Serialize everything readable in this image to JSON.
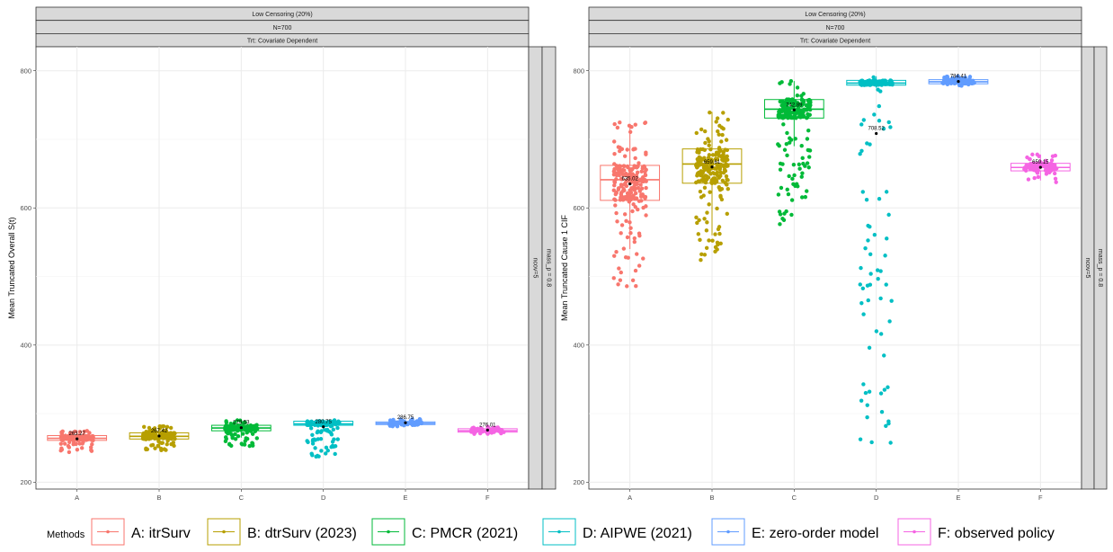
{
  "chart_data": [
    {
      "type": "box",
      "panel": "left",
      "strips_top": [
        "Low Censoring (20%)",
        "N=700",
        "Trt: Covariate Dependent"
      ],
      "strips_right": [
        "ncov=5",
        "mass_p = 0.8"
      ],
      "ylabel": "Mean Truncated Overall S(t)",
      "xlabel": "",
      "ylim": [
        190,
        835
      ],
      "yticks": [
        200,
        400,
        600,
        800
      ],
      "categories": [
        "A",
        "B",
        "C",
        "D",
        "E",
        "F"
      ],
      "grid": true,
      "boxes": [
        {
          "cat": "A",
          "q1": 261,
          "median": 264,
          "q3": 268,
          "whisker_low": 255,
          "whisker_high": 276,
          "mean": 263.27,
          "mean_label": "263.27",
          "points_min": 243,
          "points_max": 276,
          "n_points": 140
        },
        {
          "cat": "B",
          "q1": 263,
          "median": 267,
          "q3": 272,
          "whisker_low": 252,
          "whisker_high": 283,
          "mean": 267.42,
          "mean_label": "267.42",
          "points_min": 246,
          "points_max": 283,
          "n_points": 140
        },
        {
          "cat": "C",
          "q1": 275,
          "median": 279,
          "q3": 283,
          "whisker_low": 265,
          "whisker_high": 291,
          "mean": 279.53,
          "mean_label": "279.53",
          "points_min": 252,
          "points_max": 291,
          "n_points": 140
        },
        {
          "cat": "D",
          "q1": 283,
          "median": 285,
          "q3": 289,
          "whisker_low": 276,
          "whisker_high": 292,
          "mean": 280.75,
          "mean_label": "280.75",
          "points_min": 237,
          "points_max": 292,
          "n_points": 140
        },
        {
          "cat": "E",
          "q1": 284,
          "median": 286,
          "q3": 288,
          "whisker_low": 281,
          "whisker_high": 292,
          "mean": 286.75,
          "mean_label": "286.75",
          "points_min": 281,
          "points_max": 292,
          "n_points": 80
        },
        {
          "cat": "F",
          "q1": 273,
          "median": 275,
          "q3": 278,
          "whisker_low": 270,
          "whisker_high": 281,
          "mean": 276.01,
          "mean_label": "276.01",
          "points_min": 270,
          "points_max": 281,
          "n_points": 80
        }
      ]
    },
    {
      "type": "box",
      "panel": "right",
      "strips_top": [
        "Low Censoring (20%)",
        "N=700",
        "Trt: Covariate Dependent"
      ],
      "strips_right": [
        "ncov=5",
        "mass_p = 0.8"
      ],
      "ylabel": "Mean Truncated Cause 1 CIF",
      "xlabel": "",
      "ylim": [
        190,
        835
      ],
      "yticks": [
        200,
        400,
        600,
        800
      ],
      "categories": [
        "A",
        "B",
        "C",
        "D",
        "E",
        "F"
      ],
      "grid": true,
      "boxes": [
        {
          "cat": "A",
          "q1": 611,
          "median": 641,
          "q3": 662,
          "whisker_low": 540,
          "whisker_high": 720,
          "mean": 635.02,
          "mean_label": "635.02",
          "points_min": 485,
          "points_max": 725,
          "n_points": 220
        },
        {
          "cat": "B",
          "q1": 636,
          "median": 664,
          "q3": 686,
          "whisker_low": 560,
          "whisker_high": 740,
          "mean": 659.61,
          "mean_label": "659.61",
          "points_min": 523,
          "points_max": 740,
          "n_points": 220
        },
        {
          "cat": "C",
          "q1": 731,
          "median": 744,
          "q3": 758,
          "whisker_low": 690,
          "whisker_high": 785,
          "mean": 742.89,
          "mean_label": "742.89",
          "points_min": 570,
          "points_max": 785,
          "n_points": 200
        },
        {
          "cat": "D",
          "q1": 779,
          "median": 782,
          "q3": 786,
          "whisker_low": 775,
          "whisker_high": 792,
          "mean": 708.52,
          "mean_label": "708.52",
          "points_min": 255,
          "points_max": 792,
          "n_points": 170
        },
        {
          "cat": "E",
          "q1": 781,
          "median": 784,
          "q3": 787,
          "whisker_low": 778,
          "whisker_high": 792,
          "mean": 784.41,
          "mean_label": "784.41",
          "points_min": 778,
          "points_max": 792,
          "n_points": 90
        },
        {
          "cat": "F",
          "q1": 654,
          "median": 659,
          "q3": 665,
          "whisker_low": 640,
          "whisker_high": 678,
          "mean": 659.15,
          "mean_label": "659.15",
          "points_min": 636,
          "points_max": 678,
          "n_points": 90
        }
      ]
    }
  ],
  "legend": {
    "title": "Methods",
    "placement": "bottom",
    "items": [
      {
        "label": "A: itrSurv",
        "color": "#F8766D"
      },
      {
        "label": "B: dtrSurv (2023)",
        "color": "#B79F00"
      },
      {
        "label": "C: PMCR (2021)",
        "color": "#00BA38"
      },
      {
        "label": "D: AIPWE (2021)",
        "color": "#00BFC4"
      },
      {
        "label": "E: zero-order model",
        "color": "#619CFF"
      },
      {
        "label": "F: observed policy",
        "color": "#F564E3"
      }
    ]
  }
}
